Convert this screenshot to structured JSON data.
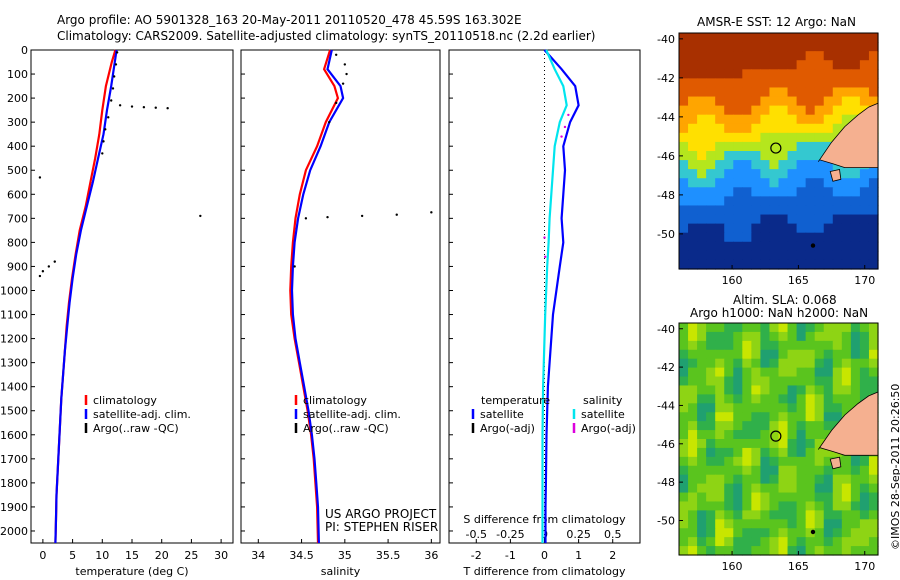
{
  "header": {
    "line1": "Argo profile: AO 5901328_163 20-May-2011 20110520_478 45.59S 163.302E",
    "line2": "Climatology: CARS2009. Satellite-adjusted climatology: synTS_20110518.nc (2.2d earlier)"
  },
  "colors": {
    "clim": "#ff0000",
    "sat": "#0000ff",
    "argo": "#000000",
    "sal_sat": "#00e5ee",
    "sal_argo": "#dd00dd",
    "land": "#f5b090"
  },
  "chart_data": [
    {
      "type": "line",
      "xlabel": "temperature (deg C)",
      "xticks": [
        0,
        5,
        10,
        15,
        20,
        25,
        30
      ],
      "xlim": [
        -2,
        32
      ],
      "ylim": [
        0,
        2050
      ],
      "yticks": [
        0,
        100,
        200,
        300,
        400,
        500,
        600,
        700,
        800,
        900,
        1000,
        1100,
        1200,
        1300,
        1400,
        1500,
        1600,
        1700,
        1800,
        1900,
        2000
      ],
      "legend": [
        "climatology",
        "satellite-adj. clim.",
        "Argo(..raw -QC)"
      ],
      "series": [
        {
          "name": "climatology",
          "style": "line",
          "color": "#ff0000",
          "x": [
            12.2,
            11.6,
            10.6,
            10.0,
            9.5,
            8.8,
            8.0,
            7.2,
            6.2,
            5.5,
            4.9,
            4.4,
            4.0,
            3.7,
            3.4,
            3.1,
            2.9,
            2.7,
            2.5,
            2.3,
            2.2,
            2.1
          ],
          "y": [
            0,
            50,
            150,
            250,
            350,
            450,
            550,
            650,
            750,
            850,
            950,
            1050,
            1150,
            1250,
            1350,
            1450,
            1550,
            1650,
            1750,
            1850,
            1950,
            2050
          ]
        },
        {
          "name": "satellite-adj. clim.",
          "style": "line",
          "color": "#0000ff",
          "x": [
            12.4,
            12.1,
            11.5,
            10.8,
            10.2,
            9.3,
            8.4,
            7.4,
            6.4,
            5.6,
            5.0,
            4.5,
            4.1,
            3.7,
            3.4,
            3.1,
            2.9,
            2.7,
            2.5,
            2.3,
            2.2,
            2.1
          ],
          "y": [
            0,
            50,
            150,
            250,
            350,
            450,
            550,
            650,
            750,
            850,
            950,
            1050,
            1150,
            1250,
            1350,
            1450,
            1550,
            1650,
            1750,
            1850,
            1950,
            2050
          ]
        },
        {
          "name": "Argo(..raw -QC)",
          "style": "dots",
          "color": "#000000",
          "x": [
            12.5,
            12.3,
            12.0,
            11.8,
            11.5,
            13.0,
            15.0,
            17.0,
            19.0,
            21.0,
            11.0,
            10.5,
            10.2,
            10.0,
            -0.5,
            26.5,
            2.0,
            1.0,
            0.0,
            -0.5
          ],
          "y": [
            10,
            60,
            110,
            160,
            210,
            230,
            235,
            238,
            240,
            242,
            280,
            330,
            380,
            430,
            530,
            690,
            880,
            900,
            920,
            940
          ]
        }
      ]
    },
    {
      "type": "line",
      "xlabel": "salinity",
      "xticks": [
        34,
        34.5,
        35,
        35.5,
        36
      ],
      "xlim": [
        33.8,
        36.1
      ],
      "ylim": [
        0,
        2050
      ],
      "legend": [
        "climatology",
        "satellite-adj. clim.",
        "Argo(..raw -QC)"
      ],
      "series": [
        {
          "name": "climatology",
          "style": "line",
          "color": "#ff0000",
          "x": [
            34.83,
            34.76,
            34.88,
            34.92,
            34.78,
            34.68,
            34.55,
            34.48,
            34.43,
            34.4,
            34.38,
            34.37,
            34.38,
            34.42,
            34.47,
            34.52,
            34.57,
            34.61,
            34.64,
            34.66,
            34.68,
            34.69
          ],
          "y": [
            0,
            80,
            150,
            200,
            300,
            400,
            500,
            600,
            700,
            800,
            900,
            1000,
            1100,
            1200,
            1300,
            1400,
            1500,
            1600,
            1700,
            1800,
            1900,
            2050
          ]
        },
        {
          "name": "satellite-adj. clim.",
          "style": "line",
          "color": "#0000ff",
          "x": [
            34.85,
            34.8,
            34.95,
            34.98,
            34.82,
            34.72,
            34.6,
            34.52,
            34.46,
            34.42,
            34.4,
            34.39,
            34.4,
            34.43,
            34.48,
            34.53,
            34.58,
            34.62,
            34.65,
            34.67,
            34.69,
            34.7
          ],
          "y": [
            0,
            80,
            150,
            200,
            300,
            400,
            500,
            600,
            700,
            800,
            900,
            1000,
            1100,
            1200,
            1300,
            1400,
            1500,
            1600,
            1700,
            1800,
            1900,
            2050
          ]
        },
        {
          "name": "Argo(..raw -QC)",
          "style": "dots",
          "color": "#000000",
          "x": [
            34.9,
            35.0,
            35.02,
            34.98,
            34.9,
            34.82,
            34.55,
            34.8,
            35.2,
            35.6,
            36.0,
            34.42
          ],
          "y": [
            20,
            60,
            100,
            140,
            220,
            300,
            700,
            695,
            690,
            685,
            675,
            900
          ]
        }
      ]
    },
    {
      "type": "line",
      "xlabel": "T difference from climatology",
      "xlabel_top": "S difference from climatology",
      "xticks": [
        -2,
        -1,
        0,
        1,
        2
      ],
      "xticks_top": [
        "-0.5",
        "-0.25",
        "0",
        "0.25",
        "0.5"
      ],
      "xlim": [
        -2.8,
        2.8
      ],
      "ylim": [
        0,
        2050
      ],
      "legend_temperature": [
        "temperature",
        "satellite",
        "Argo(-adj)"
      ],
      "legend_salinity": [
        "salinity",
        "satellite",
        "Argo(-adj)"
      ],
      "series": [
        {
          "name": "temperature satellite",
          "style": "line",
          "color": "#0000ff",
          "x": [
            0.0,
            0.5,
            0.9,
            1.0,
            0.75,
            0.55,
            0.6,
            0.55,
            0.5,
            0.55,
            0.45,
            0.35,
            0.25,
            0.2,
            0.15,
            0.1,
            0.08,
            0.06,
            0.05,
            0.04,
            0.03,
            0.03
          ],
          "y": [
            0,
            80,
            150,
            230,
            300,
            400,
            500,
            600,
            700,
            800,
            900,
            1000,
            1100,
            1200,
            1300,
            1400,
            1500,
            1600,
            1700,
            1800,
            1900,
            2050
          ]
        },
        {
          "name": "salinity satellite",
          "style": "line",
          "color": "#00e5ee",
          "x": [
            0.05,
            0.3,
            0.55,
            0.65,
            0.45,
            0.3,
            0.25,
            0.2,
            0.15,
            0.12,
            0.08,
            0.05,
            0.02,
            0.0,
            -0.02,
            -0.04,
            -0.05,
            -0.06,
            -0.06,
            -0.06,
            -0.06,
            -0.06
          ],
          "y": [
            0,
            80,
            150,
            230,
            300,
            400,
            500,
            600,
            700,
            800,
            900,
            1000,
            1100,
            1200,
            1300,
            1400,
            1500,
            1600,
            1700,
            1800,
            1900,
            2050
          ]
        },
        {
          "name": "salinity Argo(-adj)",
          "style": "dots",
          "color": "#dd00dd",
          "x": [
            0.7,
            0.6,
            0.5,
            0.0,
            0.02
          ],
          "y": [
            270,
            320,
            360,
            780,
            860
          ]
        }
      ]
    }
  ],
  "annotations": {
    "project": "US ARGO PROJECT",
    "pi": "PI: STEPHEN RISER"
  },
  "maps": [
    {
      "title": "AMSR-E SST: 12 Argo: NaN",
      "yticks": [
        "-40",
        "-42",
        "-44",
        "-46",
        "-48",
        "-50"
      ],
      "xticks": [
        "160",
        "165",
        "170"
      ],
      "marker": {
        "lon": 163.3,
        "lat": -45.6
      }
    },
    {
      "title_line1": "Altim. SLA: 0.068",
      "title_line2": "Argo h1000: NaN h2000: NaN",
      "yticks": [
        "-40",
        "-42",
        "-44",
        "-46",
        "-48",
        "-50"
      ],
      "xticks": [
        "160",
        "165",
        "170"
      ],
      "marker": {
        "lon": 163.3,
        "lat": -45.6
      }
    }
  ],
  "stamp": "©IMOS 28-Sep-2011 20:26:50"
}
